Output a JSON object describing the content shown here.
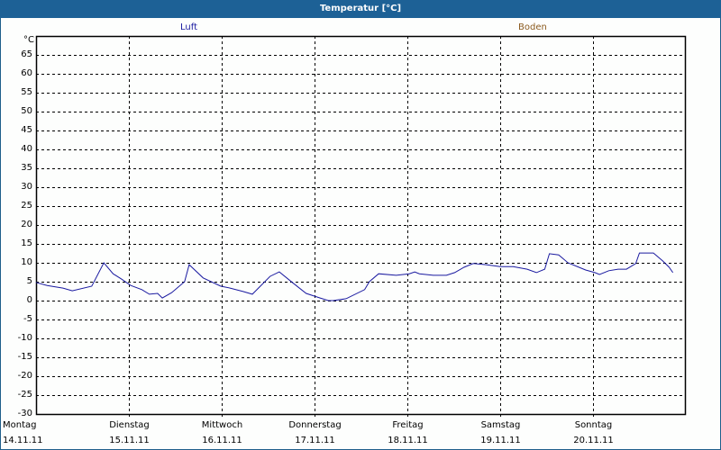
{
  "window": {
    "title": "Temperatur [°C]"
  },
  "legend": {
    "luft": "Luft",
    "boden": "Boden"
  },
  "colors": {
    "titlebar": "#1d6196",
    "luft_line": "#1a1aa0",
    "boden_label": "#8b5a1e",
    "grid": "#000000"
  },
  "axis": {
    "y_unit": "°C",
    "y_ticks": [
      "65",
      "60",
      "55",
      "50",
      "45",
      "40",
      "35",
      "30",
      "25",
      "20",
      "15",
      "10",
      "5",
      "0",
      "-5",
      "-10",
      "-15",
      "-20",
      "-25",
      "-30"
    ],
    "x_days": [
      "Montag",
      "Dienstag",
      "Mittwoch",
      "Donnerstag",
      "Freitag",
      "Samstag",
      "Sonntag"
    ],
    "x_dates": [
      "14.11.11",
      "15.11.11",
      "16.11.11",
      "17.11.11",
      "18.11.11",
      "19.11.11",
      "20.11.11"
    ]
  },
  "chart_data": {
    "type": "line",
    "title": "Temperatur [°C]",
    "xlabel": "",
    "ylabel": "°C",
    "ylim": [
      -30,
      70
    ],
    "grid": true,
    "legend": [
      "Luft",
      "Boden"
    ],
    "legend_position": "top",
    "categories": [
      "Montag 14.11.11",
      "Dienstag 15.11.11",
      "Mittwoch 16.11.11",
      "Donnerstag 17.11.11",
      "Freitag 18.11.11",
      "Samstag 19.11.11",
      "Sonntag 20.11.11"
    ],
    "series": [
      {
        "name": "Luft",
        "color": "#1a1aa0",
        "x_days": [
          0.0,
          0.12,
          0.29,
          0.39,
          0.6,
          0.73,
          0.83,
          0.92,
          1.02,
          1.14,
          1.22,
          1.31,
          1.36,
          1.46,
          1.6,
          1.65,
          1.8,
          1.99,
          2.09,
          2.23,
          2.33,
          2.52,
          2.62,
          2.76,
          2.91,
          3.06,
          3.15,
          3.2,
          3.34,
          3.54,
          3.59,
          3.69,
          3.88,
          4.02,
          4.08,
          4.13,
          4.28,
          4.42,
          4.51,
          4.61,
          4.71,
          4.85,
          5.0,
          5.14,
          5.29,
          5.39,
          5.48,
          5.53,
          5.63,
          5.73,
          5.92,
          6.02,
          6.07,
          6.17,
          6.27,
          6.36,
          6.46,
          6.5,
          6.65,
          6.75,
          6.82,
          6.86
        ],
        "values": [
          4.8,
          4.0,
          3.3,
          2.6,
          3.8,
          10.0,
          7.1,
          5.7,
          4.0,
          2.9,
          1.7,
          1.9,
          0.7,
          2.1,
          5.0,
          9.5,
          6.0,
          3.8,
          3.3,
          2.4,
          1.7,
          6.4,
          7.6,
          4.8,
          1.9,
          0.7,
          0.0,
          0.0,
          0.5,
          2.9,
          5.0,
          7.1,
          6.7,
          7.1,
          7.6,
          7.1,
          6.7,
          6.7,
          7.4,
          8.8,
          9.8,
          9.5,
          9.0,
          9.0,
          8.3,
          7.4,
          8.3,
          12.4,
          12.1,
          10.0,
          8.1,
          7.4,
          6.9,
          7.9,
          8.3,
          8.3,
          9.8,
          12.6,
          12.6,
          10.5,
          8.8,
          7.4
        ]
      },
      {
        "name": "Boden",
        "color": "#8b5a1e",
        "x_days": [],
        "values": []
      }
    ]
  }
}
